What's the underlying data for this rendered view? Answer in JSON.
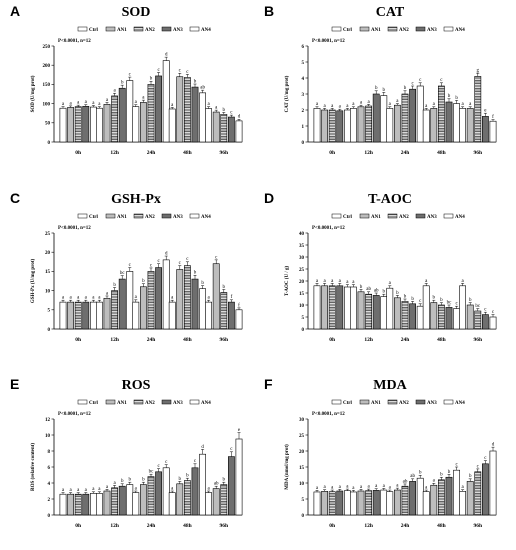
{
  "legend": [
    "Ctrl",
    "AN1",
    "AN2",
    "AN3",
    "AN4"
  ],
  "colors": {
    "line": "#000000",
    "fill": "#ffffff",
    "gray": "#bdbdbd",
    "dark": "#6e6e6e"
  },
  "chart_data": [
    {
      "type": "bar",
      "letter": "A",
      "title": "SOD",
      "ylabel": "SOD (U/mg prot)",
      "stat": "P<0.0001, n=12",
      "ylim": [
        0,
        250
      ],
      "ticks": [
        0,
        50,
        100,
        150,
        200,
        250
      ],
      "categories": [
        "0h",
        "12h",
        "24h",
        "48h",
        "96h"
      ],
      "values": [
        [
          88,
          90,
          92,
          93,
          91
        ],
        [
          88,
          98,
          120,
          140,
          160
        ],
        [
          92,
          103,
          150,
          172,
          212
        ],
        [
          86,
          170,
          168,
          143,
          128
        ],
        [
          87,
          78,
          72,
          65,
          55
        ]
      ],
      "errors": [
        [
          4,
          4,
          4,
          4,
          4
        ],
        [
          4,
          5,
          7,
          8,
          9
        ],
        [
          5,
          6,
          8,
          9,
          9
        ],
        [
          4,
          9,
          8,
          8,
          7
        ],
        [
          5,
          5,
          5,
          5,
          4
        ]
      ],
      "letters": [
        [
          "a",
          "a",
          "a",
          "a",
          "a"
        ],
        [
          "a",
          "a",
          "a",
          "b",
          "c"
        ],
        [
          "a",
          "a",
          "b",
          "c",
          "d"
        ],
        [
          "a",
          "c",
          "c",
          "b",
          "ab"
        ],
        [
          "a",
          "a",
          "b",
          "c",
          "d"
        ]
      ]
    },
    {
      "type": "bar",
      "letter": "B",
      "title": "CAT",
      "ylabel": "CAT (U/mg prot)",
      "stat": "P<0.0001, n=12",
      "ylim": [
        0,
        6
      ],
      "ticks": [
        0,
        1,
        2,
        3,
        4,
        5,
        6
      ],
      "categories": [
        "0h",
        "12h",
        "24h",
        "48h",
        "96h"
      ],
      "values": [
        [
          2.1,
          2.0,
          2.0,
          1.95,
          2.0
        ],
        [
          2.1,
          2.2,
          2.25,
          3.0,
          2.9
        ],
        [
          2.1,
          2.3,
          3.0,
          3.3,
          3.5
        ],
        [
          2.0,
          2.1,
          3.5,
          2.5,
          2.4
        ],
        [
          2.1,
          2.1,
          4.1,
          1.6,
          1.3
        ]
      ],
      "errors": [
        [
          0.1,
          0.1,
          0.1,
          0.1,
          0.1
        ],
        [
          0.1,
          0.1,
          0.1,
          0.2,
          0.2
        ],
        [
          0.1,
          0.1,
          0.2,
          0.2,
          0.2
        ],
        [
          0.1,
          0.1,
          0.2,
          0.2,
          0.2
        ],
        [
          0.1,
          0.1,
          0.2,
          0.2,
          0.1
        ]
      ],
      "letters": [
        [
          "a",
          "a",
          "a",
          "a",
          "a"
        ],
        [
          "a",
          "a",
          "a",
          "b",
          "b"
        ],
        [
          "a",
          "a",
          "b",
          "c",
          "c"
        ],
        [
          "a",
          "a",
          "c",
          "b",
          "b"
        ],
        [
          "a",
          "a",
          "g",
          "e",
          "f"
        ]
      ]
    },
    {
      "type": "bar",
      "letter": "C",
      "title": "GSH-Px",
      "ylabel": "GSH-Px (U/mg prot)",
      "stat": "P<0.0001, n=12",
      "ylim": [
        0,
        25
      ],
      "ticks": [
        0,
        5,
        10,
        15,
        20,
        25
      ],
      "categories": [
        "0h",
        "12h",
        "24h",
        "48h",
        "96h"
      ],
      "values": [
        [
          7,
          7,
          7,
          7,
          7
        ],
        [
          7,
          8,
          10,
          13,
          15
        ],
        [
          7,
          11,
          15,
          16,
          18
        ],
        [
          7,
          15.5,
          16.5,
          13,
          10.5
        ],
        [
          7,
          17,
          9.5,
          7,
          5
        ]
      ],
      "errors": [
        [
          0.5,
          0.5,
          0.5,
          0.5,
          0.5
        ],
        [
          0.5,
          0.6,
          0.8,
          0.9,
          1.0
        ],
        [
          0.6,
          0.8,
          0.9,
          1.0,
          1.0
        ],
        [
          0.5,
          1.0,
          1.0,
          1.0,
          0.8
        ],
        [
          0.5,
          1.0,
          0.8,
          0.6,
          0.5
        ]
      ],
      "letters": [
        [
          "a",
          "a",
          "a",
          "a",
          "a"
        ],
        [
          "a",
          "a",
          "b",
          "bc",
          "c"
        ],
        [
          "a",
          "b",
          "c",
          "c",
          "d"
        ],
        [
          "a",
          "c",
          "c",
          "b",
          "b"
        ],
        [
          "a",
          "c",
          "b",
          "f",
          "f"
        ]
      ]
    },
    {
      "type": "bar",
      "letter": "D",
      "title": "T-AOC",
      "ylabel": "T-AOC (U / g)",
      "stat": "P<0.0001, n=12",
      "ylim": [
        0,
        40
      ],
      "ticks": [
        0,
        5,
        10,
        15,
        20,
        25,
        30,
        35,
        40
      ],
      "categories": [
        "0h",
        "12h",
        "24h",
        "48h",
        "96h"
      ],
      "values": [
        [
          18,
          18,
          18,
          18,
          17.5
        ],
        [
          17.5,
          15.5,
          14.5,
          14,
          13.5
        ],
        [
          17,
          13,
          11.5,
          10.5,
          9.5
        ],
        [
          18,
          11,
          10,
          9,
          8.5
        ],
        [
          18,
          10,
          7.5,
          6,
          5
        ]
      ],
      "errors": [
        [
          1,
          1,
          1,
          1,
          1
        ],
        [
          1,
          1,
          1,
          1,
          1
        ],
        [
          1,
          1,
          1,
          1,
          1
        ],
        [
          1,
          1,
          1,
          1,
          1
        ],
        [
          1,
          1,
          1,
          1,
          1
        ]
      ],
      "letters": [
        [
          "a",
          "a",
          "a",
          "a",
          "a"
        ],
        [
          "a",
          "b",
          "ab",
          "ab",
          "b"
        ],
        [
          "a",
          "b",
          "b",
          "b",
          "c"
        ],
        [
          "a",
          "b",
          "b",
          "bc",
          "c"
        ],
        [
          "a",
          "b",
          "bc",
          "c",
          "c"
        ]
      ]
    },
    {
      "type": "bar",
      "letter": "E",
      "title": "ROS",
      "ylabel": "ROS (relative content)",
      "stat": "P<0.0001, n=12",
      "ylim": [
        0,
        12
      ],
      "ticks": [
        0,
        2,
        4,
        6,
        8,
        10,
        12
      ],
      "categories": [
        "0h",
        "12h",
        "24h",
        "48h",
        "96h"
      ],
      "values": [
        [
          2.6,
          2.6,
          2.6,
          2.6,
          2.7
        ],
        [
          2.7,
          3.0,
          3.4,
          3.6,
          3.8
        ],
        [
          2.8,
          3.8,
          4.8,
          5.4,
          5.9
        ],
        [
          2.8,
          3.9,
          4.3,
          5.9,
          7.6
        ],
        [
          2.8,
          3.3,
          3.8,
          7.3,
          9.5
        ]
      ],
      "errors": [
        [
          0.2,
          0.2,
          0.2,
          0.2,
          0.2
        ],
        [
          0.2,
          0.2,
          0.3,
          0.3,
          0.3
        ],
        [
          0.2,
          0.3,
          0.3,
          0.4,
          0.4
        ],
        [
          0.2,
          0.3,
          0.3,
          0.5,
          0.6
        ],
        [
          0.2,
          0.3,
          0.3,
          0.6,
          0.8
        ]
      ],
      "letters": [
        [
          "a",
          "a",
          "a",
          "a",
          "a"
        ],
        [
          "a",
          "a",
          "a",
          "b",
          "b"
        ],
        [
          "a",
          "b",
          "bc",
          "c",
          "c"
        ],
        [
          "a",
          "b",
          "b",
          "c",
          "d"
        ],
        [
          "a",
          "ab",
          "b",
          "c",
          "e"
        ]
      ]
    },
    {
      "type": "bar",
      "letter": "F",
      "title": "MDA",
      "ylabel": "MDA (nmol/mg prot)",
      "stat": "P<0.0001, n=12",
      "ylim": [
        0,
        30
      ],
      "ticks": [
        0,
        5,
        10,
        15,
        20,
        25,
        30
      ],
      "categories": [
        "0h",
        "12h",
        "24h",
        "48h",
        "96h"
      ],
      "values": [
        [
          7.2,
          7.4,
          7.3,
          7.5,
          7.6
        ],
        [
          7.2,
          7.5,
          7.6,
          7.7,
          7.8
        ],
        [
          7.3,
          7.8,
          9.0,
          10.5,
          11.5
        ],
        [
          7.3,
          9.3,
          11.0,
          11.8,
          14.0
        ],
        [
          7.4,
          10.5,
          13.5,
          16.0,
          20.0
        ]
      ],
      "errors": [
        [
          0.5,
          0.5,
          0.5,
          0.5,
          0.5
        ],
        [
          0.5,
          0.5,
          0.5,
          0.5,
          0.5
        ],
        [
          0.5,
          0.6,
          0.7,
          0.8,
          0.9
        ],
        [
          0.5,
          0.6,
          0.8,
          0.9,
          1.0
        ],
        [
          0.5,
          0.8,
          0.9,
          1.0,
          1.2
        ]
      ],
      "letters": [
        [
          "a",
          "a",
          "a",
          "a",
          "a"
        ],
        [
          "a",
          "a",
          "a",
          "a",
          "a"
        ],
        [
          "a",
          "a",
          "ab",
          "ab",
          "b"
        ],
        [
          "a",
          "a",
          "b",
          "b",
          "c"
        ],
        [
          "a",
          "b",
          "c",
          "c",
          "d"
        ]
      ]
    }
  ]
}
